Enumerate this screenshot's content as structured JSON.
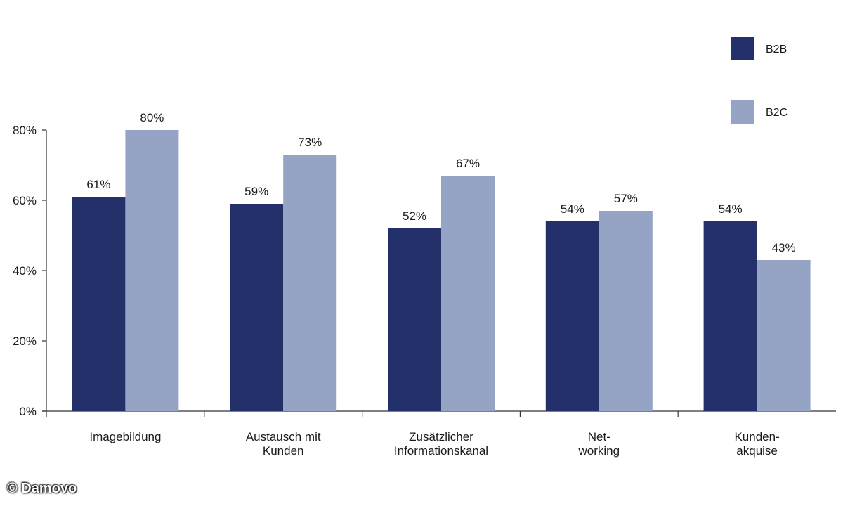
{
  "chart_data": {
    "type": "bar",
    "categories": [
      [
        "Imagebildung"
      ],
      [
        "Austausch mit",
        "Kunden"
      ],
      [
        "Zusätzlicher",
        "Informationskanal"
      ],
      [
        "Net-",
        "working"
      ],
      [
        "Kunden-",
        "akquise"
      ]
    ],
    "series": [
      {
        "name": "B2B",
        "values": [
          61,
          59,
          52,
          54,
          54
        ],
        "labels": [
          "61%",
          "59%",
          "52%",
          "54%",
          "54%"
        ],
        "color": "#24306a"
      },
      {
        "name": "B2C",
        "values": [
          80,
          73,
          67,
          57,
          43
        ],
        "labels": [
          "80%",
          "73%",
          "67%",
          "57%",
          "43%"
        ],
        "color": "#95a3c4"
      }
    ],
    "ylim": [
      0,
      80
    ],
    "yticks": [
      0,
      20,
      40,
      60,
      80
    ],
    "ytick_labels": [
      "0%",
      "20%",
      "40%",
      "60%",
      "80%"
    ],
    "grid": false,
    "legend_position": "top-right"
  },
  "copyright": "© Damovo"
}
